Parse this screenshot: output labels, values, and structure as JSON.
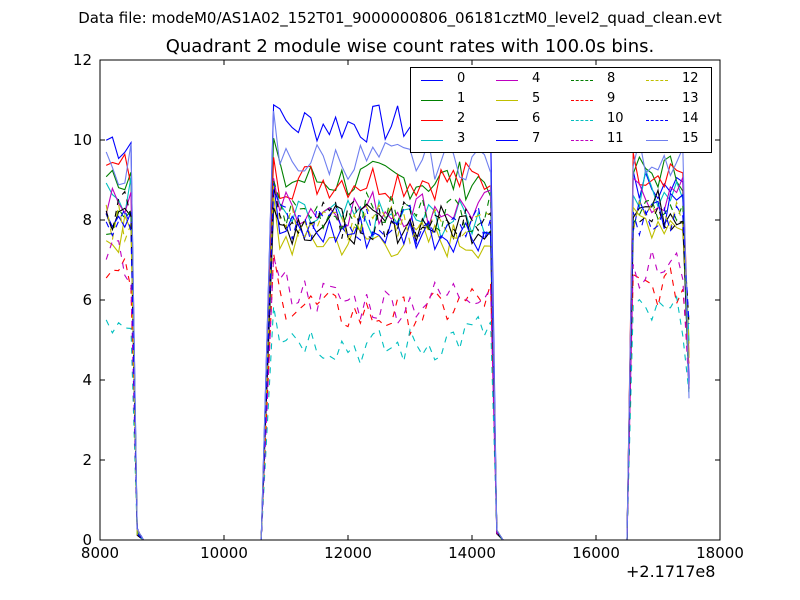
{
  "suptitle": "Data file: modeM0/AS1A02_152T01_9000000806_06181cztM0_level2_quad_clean.evt",
  "chart_data": {
    "type": "line",
    "title": "Quadrant 2 module wise count rates with 100.0s bins.",
    "xlabel": "",
    "ylabel": "",
    "xlim": [
      8000,
      18000
    ],
    "ylim": [
      0,
      12
    ],
    "x_offset_label": "+2.1717e8",
    "xticks": [
      8000,
      10000,
      12000,
      14000,
      16000,
      18000
    ],
    "yticks": [
      0,
      2,
      4,
      6,
      8,
      10,
      12
    ],
    "grid": false,
    "legend_position": "top-right",
    "segments": [
      {
        "start": 8100,
        "end": 8500,
        "drop_to": 8700
      },
      {
        "start": 10800,
        "end": 14300,
        "drop_to": 14500
      },
      {
        "start": 16600,
        "end": 17500,
        "drop_to": 17500
      }
    ],
    "rise_points": [
      10600,
      16500
    ],
    "series": [
      {
        "name": "0",
        "color": "#0000ff",
        "dash": "solid",
        "levels": [
          10.0,
          10.4,
          8.8
        ]
      },
      {
        "name": "1",
        "color": "#008000",
        "dash": "solid",
        "levels": [
          9.3,
          9.0,
          9.2
        ]
      },
      {
        "name": "2",
        "color": "#ff0000",
        "dash": "solid",
        "levels": [
          9.2,
          9.0,
          9.3
        ]
      },
      {
        "name": "3",
        "color": "#00bfbf",
        "dash": "solid",
        "levels": [
          8.6,
          8.0,
          8.8
        ]
      },
      {
        "name": "4",
        "color": "#bf00bf",
        "dash": "solid",
        "levels": [
          8.3,
          8.3,
          8.6
        ]
      },
      {
        "name": "5",
        "color": "#bfbf00",
        "dash": "solid",
        "levels": [
          7.6,
          7.5,
          8.0
        ]
      },
      {
        "name": "6",
        "color": "#000000",
        "dash": "solid",
        "levels": [
          8.1,
          7.9,
          8.3
        ]
      },
      {
        "name": "7",
        "color": "#0000ff",
        "dash": "solid",
        "levels": [
          8.3,
          7.7,
          8.2
        ]
      },
      {
        "name": "8",
        "color": "#008000",
        "dash": "dashed",
        "levels": [
          7.8,
          8.2,
          8.4
        ]
      },
      {
        "name": "9",
        "color": "#ff0000",
        "dash": "dashed",
        "levels": [
          6.5,
          6.1,
          6.3
        ]
      },
      {
        "name": "10",
        "color": "#00bfbf",
        "dash": "dashed",
        "levels": [
          5.6,
          5.3,
          5.6
        ]
      },
      {
        "name": "11",
        "color": "#bf00bf",
        "dash": "dashed",
        "levels": [
          6.9,
          6.4,
          6.8
        ]
      },
      {
        "name": "12",
        "color": "#bfbf00",
        "dash": "dashed",
        "levels": [
          8.0,
          7.9,
          8.1
        ]
      },
      {
        "name": "13",
        "color": "#000000",
        "dash": "dashed",
        "levels": [
          8.2,
          8.0,
          8.2
        ]
      },
      {
        "name": "14",
        "color": "#0000ff",
        "dash": "dashed",
        "levels": [
          8.0,
          7.9,
          8.1
        ]
      },
      {
        "name": "15",
        "color": "#6f7fef",
        "dash": "solid",
        "levels": [
          9.4,
          9.5,
          9.6
        ]
      }
    ]
  }
}
